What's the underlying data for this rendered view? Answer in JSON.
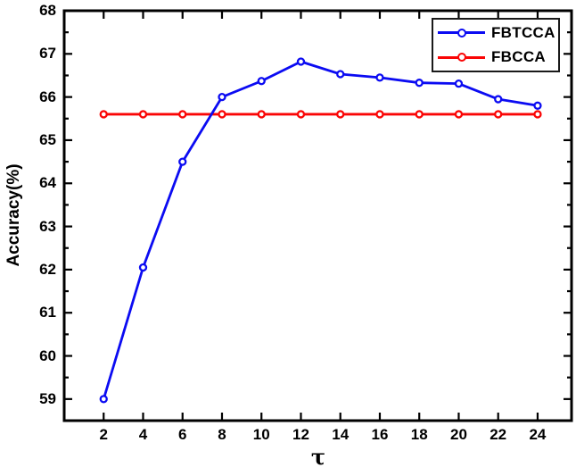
{
  "chart_data": {
    "type": "line",
    "title": "",
    "xlabel": "τ",
    "ylabel": "Accuracy(%)",
    "x": [
      2,
      4,
      6,
      8,
      10,
      12,
      14,
      16,
      18,
      20,
      22,
      24
    ],
    "series": [
      {
        "name": "FBTCCA",
        "color": "#0b0bf2",
        "marker": "open-circle",
        "values": [
          59.0,
          62.05,
          64.5,
          66.0,
          66.37,
          66.82,
          66.53,
          66.45,
          66.33,
          66.31,
          65.95,
          65.8
        ]
      },
      {
        "name": "FBCCA",
        "color": "#fa0505",
        "marker": "open-circle",
        "values": [
          65.6,
          65.6,
          65.6,
          65.6,
          65.6,
          65.6,
          65.6,
          65.6,
          65.6,
          65.6,
          65.6,
          65.6
        ]
      }
    ],
    "xlim": [
      0,
      25.72
    ],
    "ylim": [
      58.5,
      68
    ],
    "x_ticks": [
      2,
      4,
      6,
      8,
      10,
      12,
      14,
      16,
      18,
      20,
      22,
      24
    ],
    "y_ticks": [
      59,
      60,
      61,
      62,
      63,
      64,
      65,
      66,
      67,
      68
    ],
    "y_minor_step": 0.5,
    "grid": false,
    "legend_position": "top-right",
    "legend_order": [
      "FBTCCA",
      "FBCCA"
    ],
    "axis_color": "#000000",
    "background_color": "#ffffff"
  }
}
